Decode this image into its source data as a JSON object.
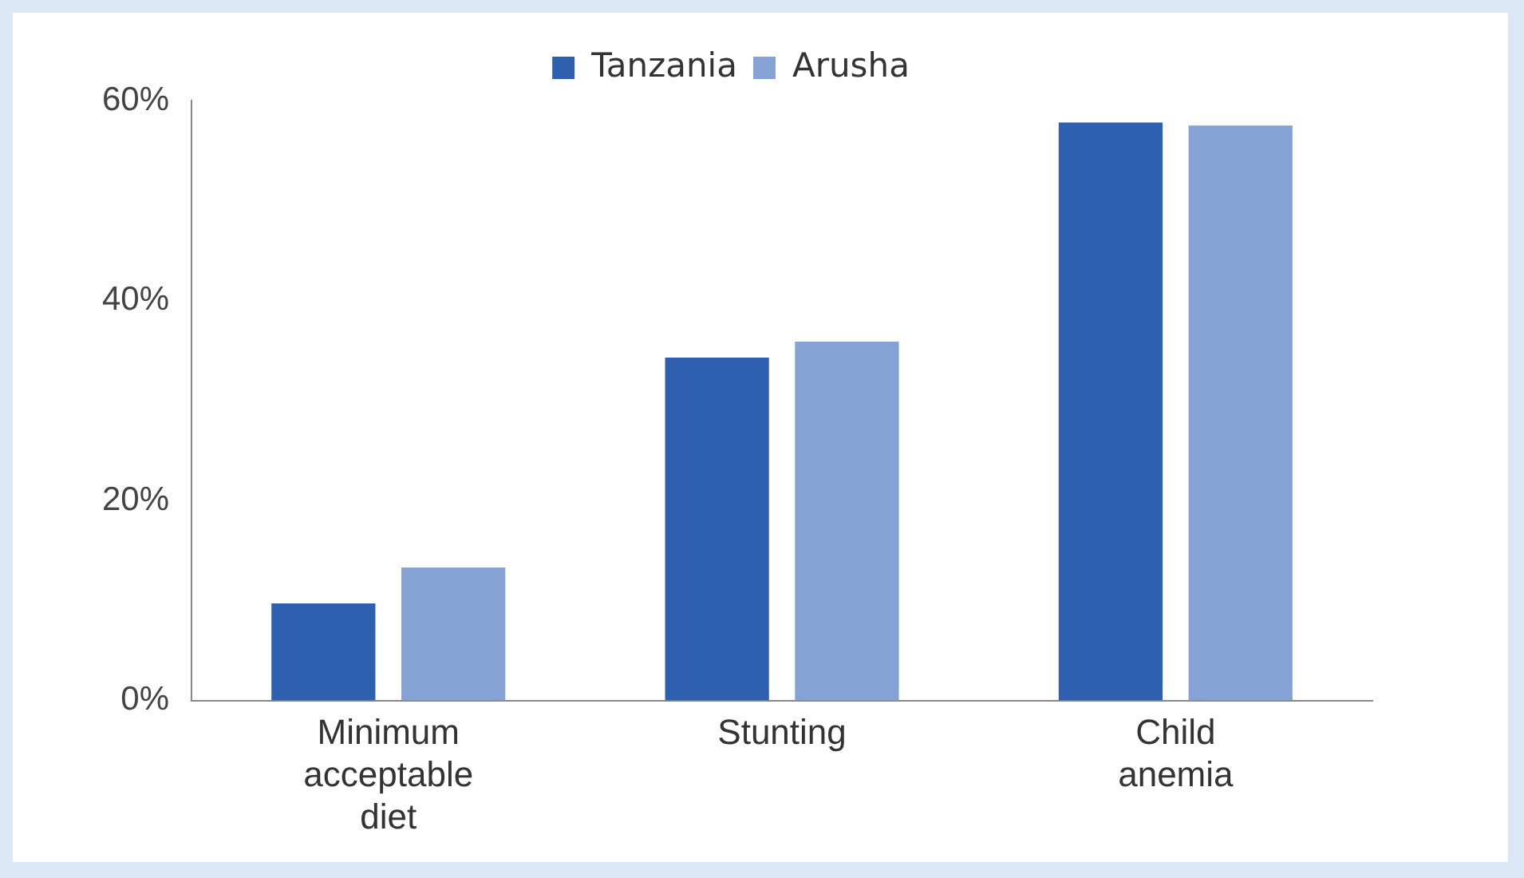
{
  "chart_data": {
    "type": "bar",
    "categories": [
      "Minimum acceptable diet",
      "Stunting",
      "Child anemia"
    ],
    "series": [
      {
        "name": "Tanzania",
        "color": "#2f5faf",
        "values": [
          9.7,
          34.3,
          57.8
        ]
      },
      {
        "name": "Arusha",
        "color": "#86a2d4",
        "values": [
          13.3,
          35.9,
          57.5
        ]
      }
    ],
    "ylim": [
      0,
      60
    ],
    "yticks": [
      {
        "value": 0,
        "label": "0%"
      },
      {
        "value": 20,
        "label": "20%"
      },
      {
        "value": 40,
        "label": "40%"
      },
      {
        "value": 60,
        "label": "60%"
      }
    ],
    "grid": false,
    "legend": "top"
  }
}
